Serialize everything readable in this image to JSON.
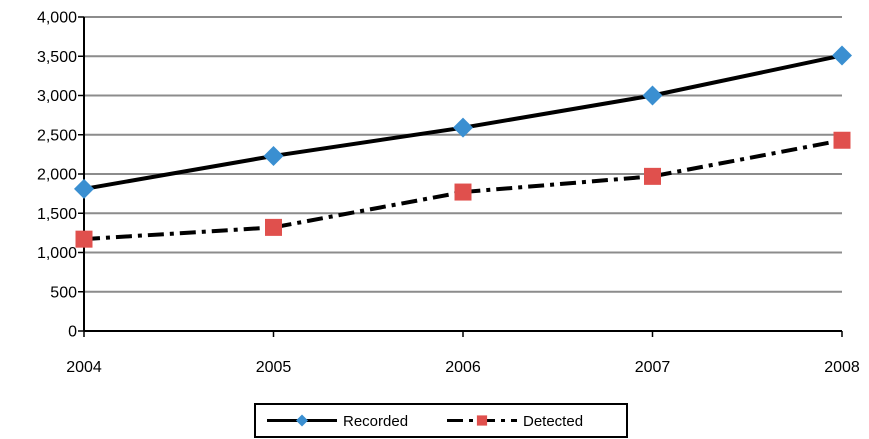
{
  "chart_data": {
    "type": "line",
    "title": "",
    "xlabel": "",
    "ylabel": "",
    "x": [
      "2004",
      "2005",
      "2006",
      "2007",
      "2008"
    ],
    "ylim": [
      0,
      4000
    ],
    "yticks": [
      "0",
      "500",
      "1,000",
      "1,500",
      "2,000",
      "2,500",
      "3,000",
      "3,500",
      "4,000"
    ],
    "ytick_values": [
      0,
      500,
      1000,
      1500,
      2000,
      2500,
      3000,
      3500,
      4000
    ],
    "grid": true,
    "legend": "bottom",
    "series": [
      {
        "name": "Recorded",
        "values": [
          1810,
          2230,
          2590,
          3000,
          3510
        ],
        "color": "#3a8fd1",
        "marker": "diamond",
        "line": "solid"
      },
      {
        "name": "Detected",
        "values": [
          1170,
          1320,
          1770,
          1970,
          2430
        ],
        "color": "#e0504d",
        "marker": "square",
        "line": "dash-dot"
      }
    ]
  }
}
